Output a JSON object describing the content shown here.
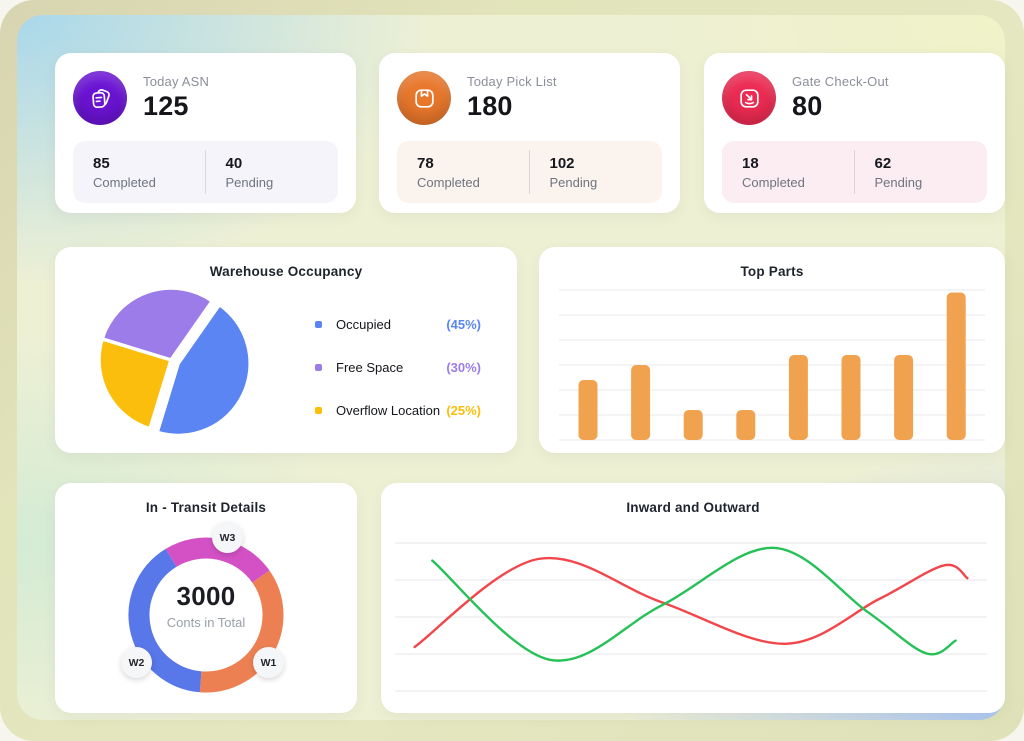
{
  "stat_cards": [
    {
      "title": "Today ASN",
      "value": "125",
      "accent": "#6a13d3",
      "strip_bg": "#f5f4fa",
      "completed_value": "85",
      "completed_label": "Completed",
      "pending_value": "40",
      "pending_label": "Pending"
    },
    {
      "title": "Today Pick List",
      "value": "180",
      "accent": "#e8772b",
      "strip_bg": "#faf3ee",
      "completed_value": "78",
      "completed_label": "Completed",
      "pending_value": "102",
      "pending_label": "Pending"
    },
    {
      "title": "Gate Check-Out",
      "value": "80",
      "accent": "#ec2b52",
      "strip_bg": "#fbedf1",
      "completed_value": "18",
      "completed_label": "Completed",
      "pending_value": "62",
      "pending_label": "Pending"
    }
  ],
  "chart_data": [
    {
      "type": "pie",
      "title": "Warehouse Occupancy",
      "legend_position": "right",
      "slices": [
        {
          "label": "Occupied",
          "percent": 45,
          "percent_label": "(45%)",
          "color": "#5a85f2",
          "start_angle": 35,
          "exploded": true
        },
        {
          "label": "Free Space",
          "percent": 30,
          "percent_label": "(30%)",
          "color": "#9c7ce8",
          "start_angle": 287,
          "exploded": false
        },
        {
          "label": "Overflow Location",
          "percent": 25,
          "percent_label": "(25%)",
          "color": "#fcbe0d",
          "start_angle": 197,
          "exploded": false
        }
      ]
    },
    {
      "type": "bar",
      "title": "Top Parts",
      "bar_color": "#f0a24e",
      "grid": true,
      "axis_labels_visible": false,
      "ylim": [
        0,
        60
      ],
      "values": [
        24,
        30,
        12,
        12,
        34,
        34,
        34,
        59
      ]
    },
    {
      "type": "donut",
      "title": "In - Transit Details",
      "center_value": "3000",
      "center_label": "Conts in Total",
      "start_angle": 55,
      "segments": [
        {
          "label": "W1",
          "percent": 36,
          "color": "#ed8052"
        },
        {
          "label": "W2",
          "percent": 40,
          "color": "#5877e8"
        },
        {
          "label": "W3",
          "percent": 24,
          "color": "#d351c5"
        }
      ]
    },
    {
      "type": "line",
      "title": "Inward and Outward",
      "grid": true,
      "axis_labels_visible": false,
      "x_range_pct": [
        0,
        100
      ],
      "y_range_pct": [
        0,
        100
      ],
      "series": [
        {
          "name": "red-series",
          "color": "#f2464b",
          "points": [
            [
              3,
              70
            ],
            [
              24,
              15
            ],
            [
              45,
              42
            ],
            [
              66,
              68
            ],
            [
              82,
              40
            ],
            [
              93,
              19
            ],
            [
              97,
              27
            ]
          ]
        },
        {
          "name": "green-series",
          "color": "#25c157",
          "points": [
            [
              6,
              16
            ],
            [
              26,
              78
            ],
            [
              45,
              44
            ],
            [
              64,
              8
            ],
            [
              80,
              48
            ],
            [
              90,
              74
            ],
            [
              95,
              66
            ]
          ]
        }
      ]
    }
  ]
}
